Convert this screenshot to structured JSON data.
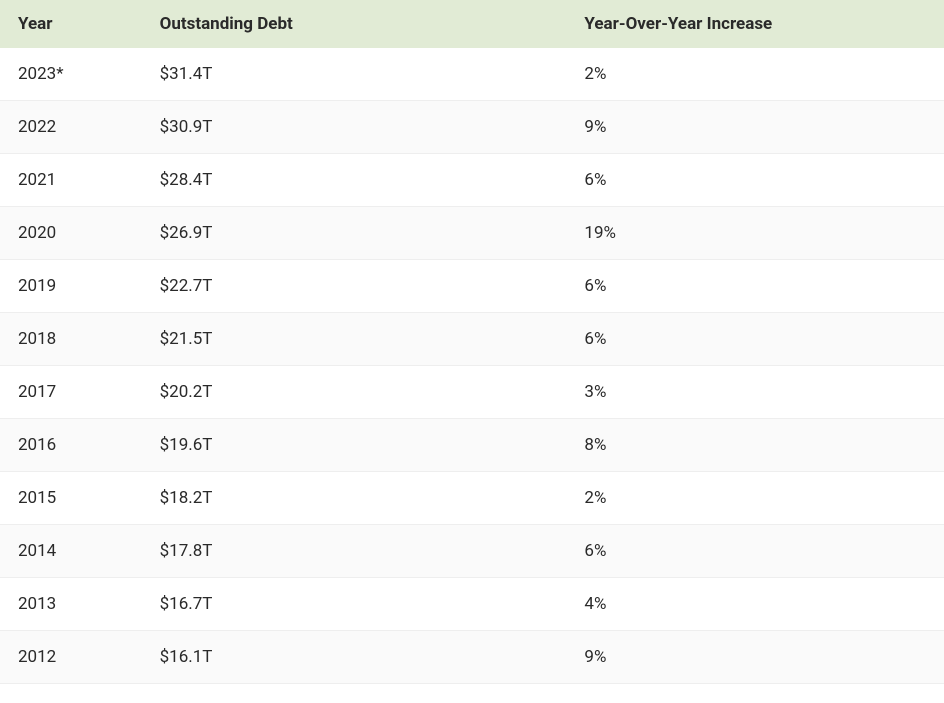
{
  "table": {
    "type": "table",
    "header_bg_color": "#e1ebd5",
    "row_odd_bg": "#ffffff",
    "row_even_bg": "#fafafa",
    "border_color": "#eeeeee",
    "text_color": "#2a2a2a",
    "font_size": 17,
    "header_font_weight": 700,
    "columns": [
      {
        "label": "Year",
        "width_pct": 15,
        "align": "left"
      },
      {
        "label": "Outstanding Debt",
        "width_pct": 45,
        "align": "left"
      },
      {
        "label": "Year-Over-Year Increase",
        "width_pct": 40,
        "align": "left"
      }
    ],
    "rows": [
      {
        "year": "2023*",
        "debt": "$31.4T",
        "yoy": "2%"
      },
      {
        "year": "2022",
        "debt": "$30.9T",
        "yoy": "9%"
      },
      {
        "year": "2021",
        "debt": "$28.4T",
        "yoy": "6%"
      },
      {
        "year": "2020",
        "debt": "$26.9T",
        "yoy": "19%"
      },
      {
        "year": "2019",
        "debt": "$22.7T",
        "yoy": "6%"
      },
      {
        "year": "2018",
        "debt": "$21.5T",
        "yoy": "6%"
      },
      {
        "year": "2017",
        "debt": "$20.2T",
        "yoy": "3%"
      },
      {
        "year": "2016",
        "debt": "$19.6T",
        "yoy": "8%"
      },
      {
        "year": "2015",
        "debt": "$18.2T",
        "yoy": "2%"
      },
      {
        "year": "2014",
        "debt": "$17.8T",
        "yoy": "6%"
      },
      {
        "year": "2013",
        "debt": "$16.7T",
        "yoy": "4%"
      },
      {
        "year": "2012",
        "debt": "$16.1T",
        "yoy": "9%"
      }
    ]
  }
}
